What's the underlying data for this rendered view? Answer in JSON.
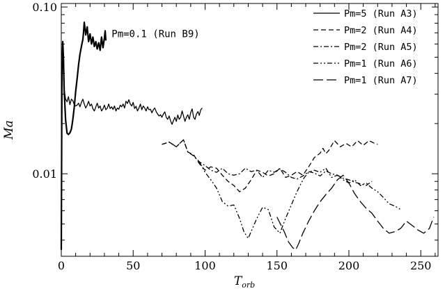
{
  "chart_data": {
    "type": "line",
    "title": "",
    "xlabel": "T",
    "xlabel_sub": "orb",
    "ylabel": "Ma",
    "xlim": [
      0,
      262
    ],
    "ylim": [
      0.0032,
      0.105
    ],
    "yscale": "log",
    "grid": false,
    "legend_position": "top-right",
    "x_ticks": [
      {
        "value": 0,
        "label": "0"
      },
      {
        "value": 50,
        "label": "50"
      },
      {
        "value": 100,
        "label": "100"
      },
      {
        "value": 150,
        "label": "150"
      },
      {
        "value": 200,
        "label": "200"
      },
      {
        "value": 250,
        "label": "250"
      }
    ],
    "x_minor_ticks": [
      10,
      20,
      30,
      40,
      60,
      70,
      80,
      90,
      110,
      120,
      130,
      140,
      160,
      170,
      180,
      190,
      210,
      220,
      230,
      240,
      260
    ],
    "y_ticks": [
      {
        "value": 0.01,
        "label": "0.01"
      },
      {
        "value": 0.1,
        "label": "0.10"
      }
    ],
    "y_minor_ticks": [
      0.004,
      0.005,
      0.006,
      0.007,
      0.008,
      0.009,
      0.02,
      0.03,
      0.04,
      0.05,
      0.06,
      0.07,
      0.08,
      0.09
    ],
    "annotations": [
      {
        "text": "Pm=0.1 (Run B9)",
        "x": 35,
        "y": 0.066
      }
    ],
    "series": [
      {
        "name": "Pm=5 (Run A3)",
        "style": "solid",
        "width": 2.2,
        "x": [
          0,
          0.5,
          1,
          1.5,
          2,
          3,
          4,
          5,
          6,
          7,
          8,
          9,
          10,
          11,
          12,
          13,
          14,
          15,
          15.5,
          16,
          16.5,
          17,
          18,
          19,
          20,
          21,
          22,
          23,
          24,
          25,
          26,
          27,
          28,
          29,
          30,
          30.5,
          31
        ],
        "y": [
          0.0035,
          0.045,
          0.062,
          0.05,
          0.032,
          0.021,
          0.0175,
          0.0172,
          0.0176,
          0.0185,
          0.021,
          0.025,
          0.031,
          0.037,
          0.045,
          0.052,
          0.058,
          0.064,
          0.071,
          0.081,
          0.074,
          0.068,
          0.076,
          0.062,
          0.069,
          0.06,
          0.066,
          0.058,
          0.062,
          0.056,
          0.061,
          0.055,
          0.066,
          0.057,
          0.065,
          0.072,
          0.063
        ]
      },
      {
        "name": "Pm=2 (Run A4)",
        "style": "dashed",
        "width": 1.3,
        "x": [
          70,
          75,
          80,
          85,
          88,
          92,
          96,
          100,
          104,
          108,
          112,
          116,
          120,
          124,
          128,
          132,
          136,
          140,
          144,
          148,
          152,
          156,
          160,
          164,
          168,
          172,
          176,
          180,
          182,
          184,
          186,
          188,
          190,
          194,
          198,
          202,
          206,
          210,
          214,
          218,
          220
        ],
        "y": [
          0.015,
          0.0155,
          0.0145,
          0.016,
          0.0135,
          0.013,
          0.0115,
          0.0105,
          0.011,
          0.0108,
          0.0098,
          0.009,
          0.0085,
          0.0078,
          0.0082,
          0.0092,
          0.0105,
          0.0102,
          0.0097,
          0.01,
          0.0108,
          0.0095,
          0.0098,
          0.0103,
          0.0098,
          0.011,
          0.0125,
          0.0133,
          0.0142,
          0.0132,
          0.0138,
          0.0148,
          0.0158,
          0.0145,
          0.0152,
          0.0145,
          0.0158,
          0.0148,
          0.0158,
          0.0152,
          0.015
        ]
      },
      {
        "name": "Pm=2 (Run A5)",
        "style": "dashdot",
        "width": 1.3,
        "x": [
          70,
          75,
          80,
          85,
          88,
          92,
          96,
          100,
          104,
          108,
          112,
          116,
          120,
          124,
          128,
          132,
          136,
          140,
          144,
          148,
          152,
          156,
          160,
          164,
          168,
          172,
          176,
          180,
          184,
          188,
          192,
          196,
          200,
          204,
          208,
          212,
          216
        ],
        "y": [
          0.015,
          0.0155,
          0.0145,
          0.016,
          0.0135,
          0.0128,
          0.0118,
          0.0112,
          0.0105,
          0.0102,
          0.0108,
          0.01,
          0.0098,
          0.01,
          0.0108,
          0.0103,
          0.0105,
          0.0095,
          0.0105,
          0.0102,
          0.0107,
          0.0102,
          0.0095,
          0.0093,
          0.0097,
          0.0103,
          0.0101,
          0.0097,
          0.0104,
          0.01,
          0.0098,
          0.0094,
          0.0092,
          0.0089,
          0.0087,
          0.0085,
          0.009
        ]
      },
      {
        "name": "Pm=1 (Run A6)",
        "style": "dashdotdot",
        "width": 1.3,
        "x": [
          96,
          100,
          104,
          108,
          112,
          116,
          120,
          124,
          127,
          130,
          133,
          136,
          140,
          144,
          148,
          152,
          156,
          160,
          163,
          166,
          169,
          172,
          176,
          180,
          184,
          188,
          192,
          196,
          200,
          204,
          208,
          212,
          216,
          220,
          224,
          228,
          232,
          236
        ],
        "y": [
          0.0118,
          0.0102,
          0.0092,
          0.0082,
          0.0068,
          0.0064,
          0.0065,
          0.0054,
          0.0045,
          0.0041,
          0.0047,
          0.0054,
          0.0063,
          0.0061,
          0.0048,
          0.0044,
          0.0054,
          0.0065,
          0.0075,
          0.0085,
          0.0095,
          0.0102,
          0.0105,
          0.0102,
          0.0108,
          0.0095,
          0.0098,
          0.0092,
          0.0088,
          0.0092,
          0.0085,
          0.0088,
          0.0082,
          0.0078,
          0.0072,
          0.0066,
          0.0064,
          0.0061
        ]
      },
      {
        "name": "Pm=1 (Run A7)",
        "style": "longdash",
        "width": 1.3,
        "x": [
          150,
          155,
          158,
          161,
          163,
          165,
          168,
          172,
          176,
          180,
          184,
          188,
          192,
          196,
          200,
          204,
          208,
          212,
          216,
          220,
          224,
          228,
          232,
          236,
          240,
          244,
          248,
          252,
          256,
          259
        ],
        "y": [
          0.0055,
          0.0045,
          0.0039,
          0.0036,
          0.0035,
          0.0038,
          0.0044,
          0.0052,
          0.006,
          0.0068,
          0.0075,
          0.0082,
          0.0092,
          0.0098,
          0.0088,
          0.0076,
          0.0068,
          0.0062,
          0.0058,
          0.0052,
          0.0047,
          0.0044,
          0.0045,
          0.0047,
          0.0052,
          0.0049,
          0.0046,
          0.0044,
          0.0047,
          0.0055
        ]
      },
      {
        "name": "",
        "style": "solid",
        "width": 1.3,
        "x": [
          0,
          1,
          2,
          3,
          4,
          5,
          6,
          7,
          8,
          9,
          10,
          11,
          12,
          13,
          14,
          15,
          16,
          17,
          18,
          19,
          20,
          21,
          22,
          23,
          24,
          25,
          26,
          27,
          28,
          29,
          30,
          31,
          32,
          33,
          34,
          35,
          36,
          37,
          38,
          39,
          40,
          41,
          42,
          43,
          44,
          45,
          46,
          47,
          48,
          49,
          50,
          51,
          52,
          53,
          54,
          55,
          56,
          57,
          58,
          59,
          60,
          61,
          62,
          63,
          64,
          65,
          66,
          67,
          68,
          69,
          70,
          71,
          72,
          73,
          74,
          75,
          76,
          77,
          78,
          79,
          80,
          81,
          82,
          83,
          84,
          85,
          86,
          87,
          88,
          89,
          90,
          91,
          92,
          93,
          94,
          95,
          96,
          97,
          98
        ],
        "y": [
          0.04,
          0.05,
          0.032,
          0.028,
          0.027,
          0.029,
          0.026,
          0.028,
          0.0275,
          0.026,
          0.0255,
          0.0258,
          0.0265,
          0.0252,
          0.0268,
          0.028,
          0.0262,
          0.0248,
          0.0258,
          0.0272,
          0.0255,
          0.0262,
          0.0245,
          0.0238,
          0.0252,
          0.0265,
          0.0248,
          0.0255,
          0.0238,
          0.0245,
          0.0258,
          0.0242,
          0.0248,
          0.0262,
          0.0246,
          0.0252,
          0.0243,
          0.0255,
          0.0238,
          0.0248,
          0.0244,
          0.0258,
          0.0252,
          0.0262,
          0.0248,
          0.0272,
          0.0264,
          0.0278,
          0.0262,
          0.0255,
          0.0268,
          0.0246,
          0.0254,
          0.0238,
          0.0248,
          0.0262,
          0.0242,
          0.0255,
          0.0248,
          0.0238,
          0.0252,
          0.0242,
          0.0244,
          0.0232,
          0.0242,
          0.0248,
          0.0236,
          0.0228,
          0.0222,
          0.0226,
          0.0218,
          0.0228,
          0.0235,
          0.0218,
          0.0212,
          0.0222,
          0.0208,
          0.0198,
          0.0208,
          0.0218,
          0.0206,
          0.0225,
          0.0212,
          0.0218,
          0.0238,
          0.0222,
          0.0206,
          0.0218,
          0.0226,
          0.0212,
          0.0232,
          0.0245,
          0.0218,
          0.0212,
          0.0228,
          0.0236,
          0.0224,
          0.0242,
          0.0248
        ]
      }
    ]
  }
}
